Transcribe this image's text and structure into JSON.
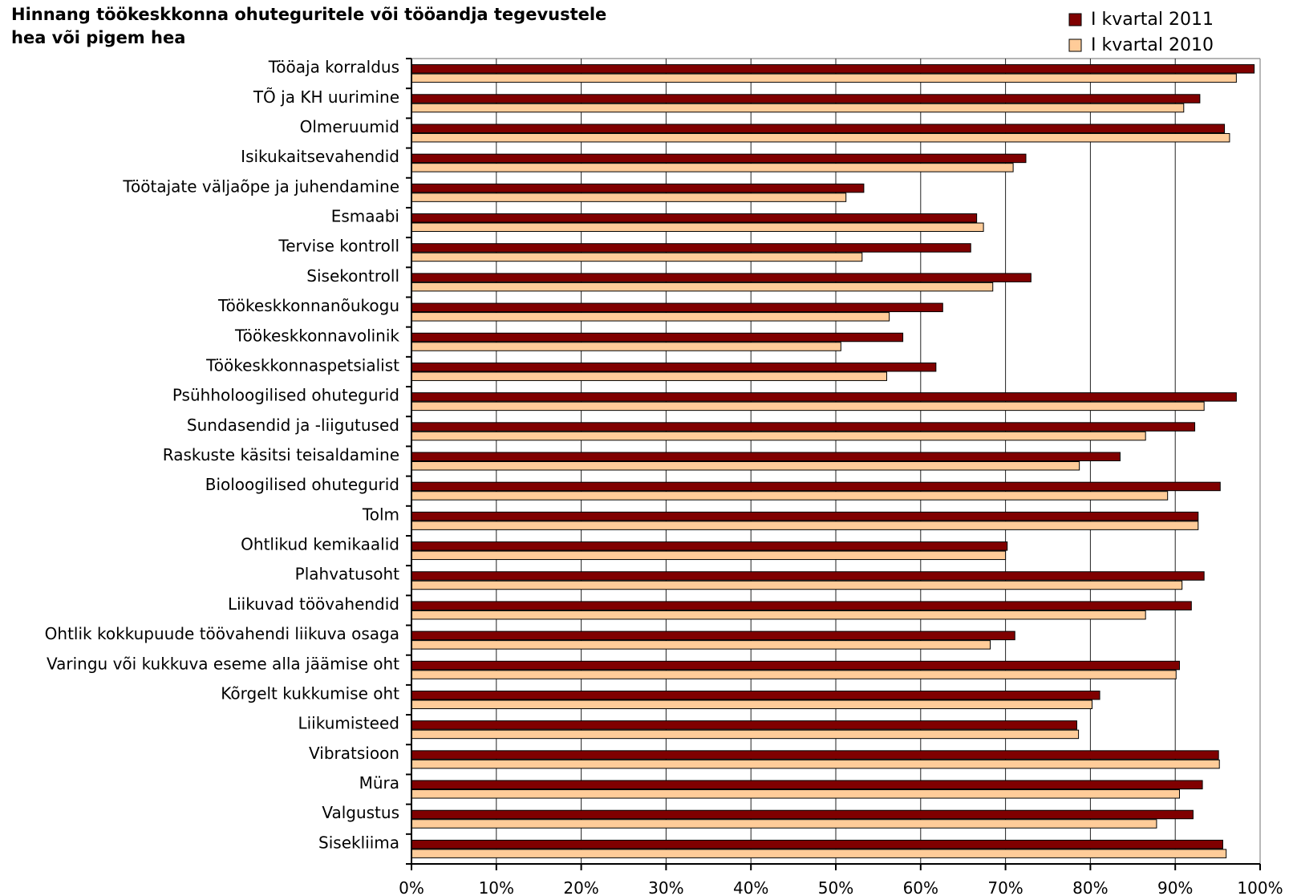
{
  "chart_data": {
    "type": "bar",
    "orientation": "horizontal",
    "title_lines": [
      "Hinnang töökeskkonna ohuteguritele või tööandja tegevustele",
      "hea või pigem hea"
    ],
    "xlabel": "",
    "ylabel": "",
    "xlim": [
      0,
      100
    ],
    "x_ticks": [
      0,
      10,
      20,
      30,
      40,
      50,
      60,
      70,
      80,
      90,
      100
    ],
    "x_tick_labels": [
      "0%",
      "10%",
      "20%",
      "30%",
      "40%",
      "50%",
      "60%",
      "70%",
      "80%",
      "90%",
      "100%"
    ],
    "grid": true,
    "legend_position": "top-right",
    "categories": [
      "Tööaja korraldus",
      "TÕ ja KH uurimine",
      "Olmeruumid",
      "Isikukaitsevahendid",
      "Töötajate väljaõpe ja juhendamine",
      "Esmaabi",
      "Tervise kontroll",
      "Sisekontroll",
      "Töökeskkonnanõukogu",
      "Töökeskkonnavolinik",
      "Töökeskkonnaspetsialist",
      "Psühholoogilised ohutegurid",
      "Sundasendid ja -liigutused",
      "Raskuste käsitsi teisaldamine",
      "Bioloogilised ohutegurid",
      "Tolm",
      "Ohtlikud kemikaalid",
      "Plahvatusoht",
      "Liikuvad töövahendid",
      "Ohtlik kokkupuude töövahendi liikuva osaga",
      "Varingu või kukkuva eseme alla jäämise oht",
      "Kõrgelt kukkumise oht",
      "Liikumisteed",
      "Vibratsioon",
      "Müra",
      "Valgustus",
      "Sisekliima"
    ],
    "series": [
      {
        "name": "I kvartal 2011",
        "color": "#800000",
        "values": [
          99.3,
          92.9,
          95.8,
          72.4,
          53.3,
          66.6,
          65.9,
          73.0,
          62.6,
          57.9,
          61.8,
          97.2,
          92.3,
          83.5,
          95.3,
          92.7,
          70.2,
          93.4,
          91.9,
          71.1,
          90.5,
          81.1,
          78.4,
          95.1,
          93.2,
          92.1,
          95.6
        ]
      },
      {
        "name": "I kvartal 2010",
        "color": "#FFCC99",
        "values": [
          97.2,
          91.0,
          96.4,
          70.9,
          51.2,
          67.4,
          53.1,
          68.5,
          56.3,
          50.6,
          56.0,
          93.4,
          86.5,
          78.7,
          89.1,
          92.7,
          70.0,
          90.8,
          86.5,
          68.2,
          90.1,
          80.2,
          78.6,
          95.2,
          90.5,
          87.8,
          96.0
        ]
      }
    ]
  }
}
